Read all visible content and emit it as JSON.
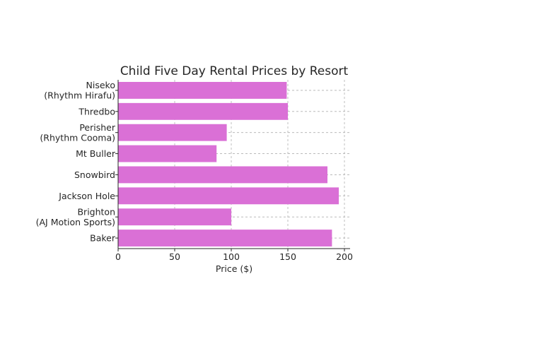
{
  "chart_data": {
    "type": "bar",
    "orientation": "horizontal",
    "title": "Child Five Day Rental Prices by Resort",
    "xlabel": "Price ($)",
    "ylabel": "",
    "xlim": [
      0,
      205
    ],
    "xticks": [
      0,
      50,
      100,
      150,
      200
    ],
    "grid": true,
    "bar_color": "#da70d6",
    "categories": [
      [
        "Niseko",
        "(Rhythm Hirafu)"
      ],
      [
        "Thredbo"
      ],
      [
        "Perisher",
        "(Rhythm Cooma)"
      ],
      [
        "Mt Buller"
      ],
      [
        "Snowbird"
      ],
      [
        "Jackson Hole"
      ],
      [
        "Brighton",
        "(AJ Motion Sports)"
      ],
      [
        "Baker"
      ]
    ],
    "values": [
      149,
      150,
      96,
      87,
      185,
      195,
      100,
      189
    ]
  }
}
